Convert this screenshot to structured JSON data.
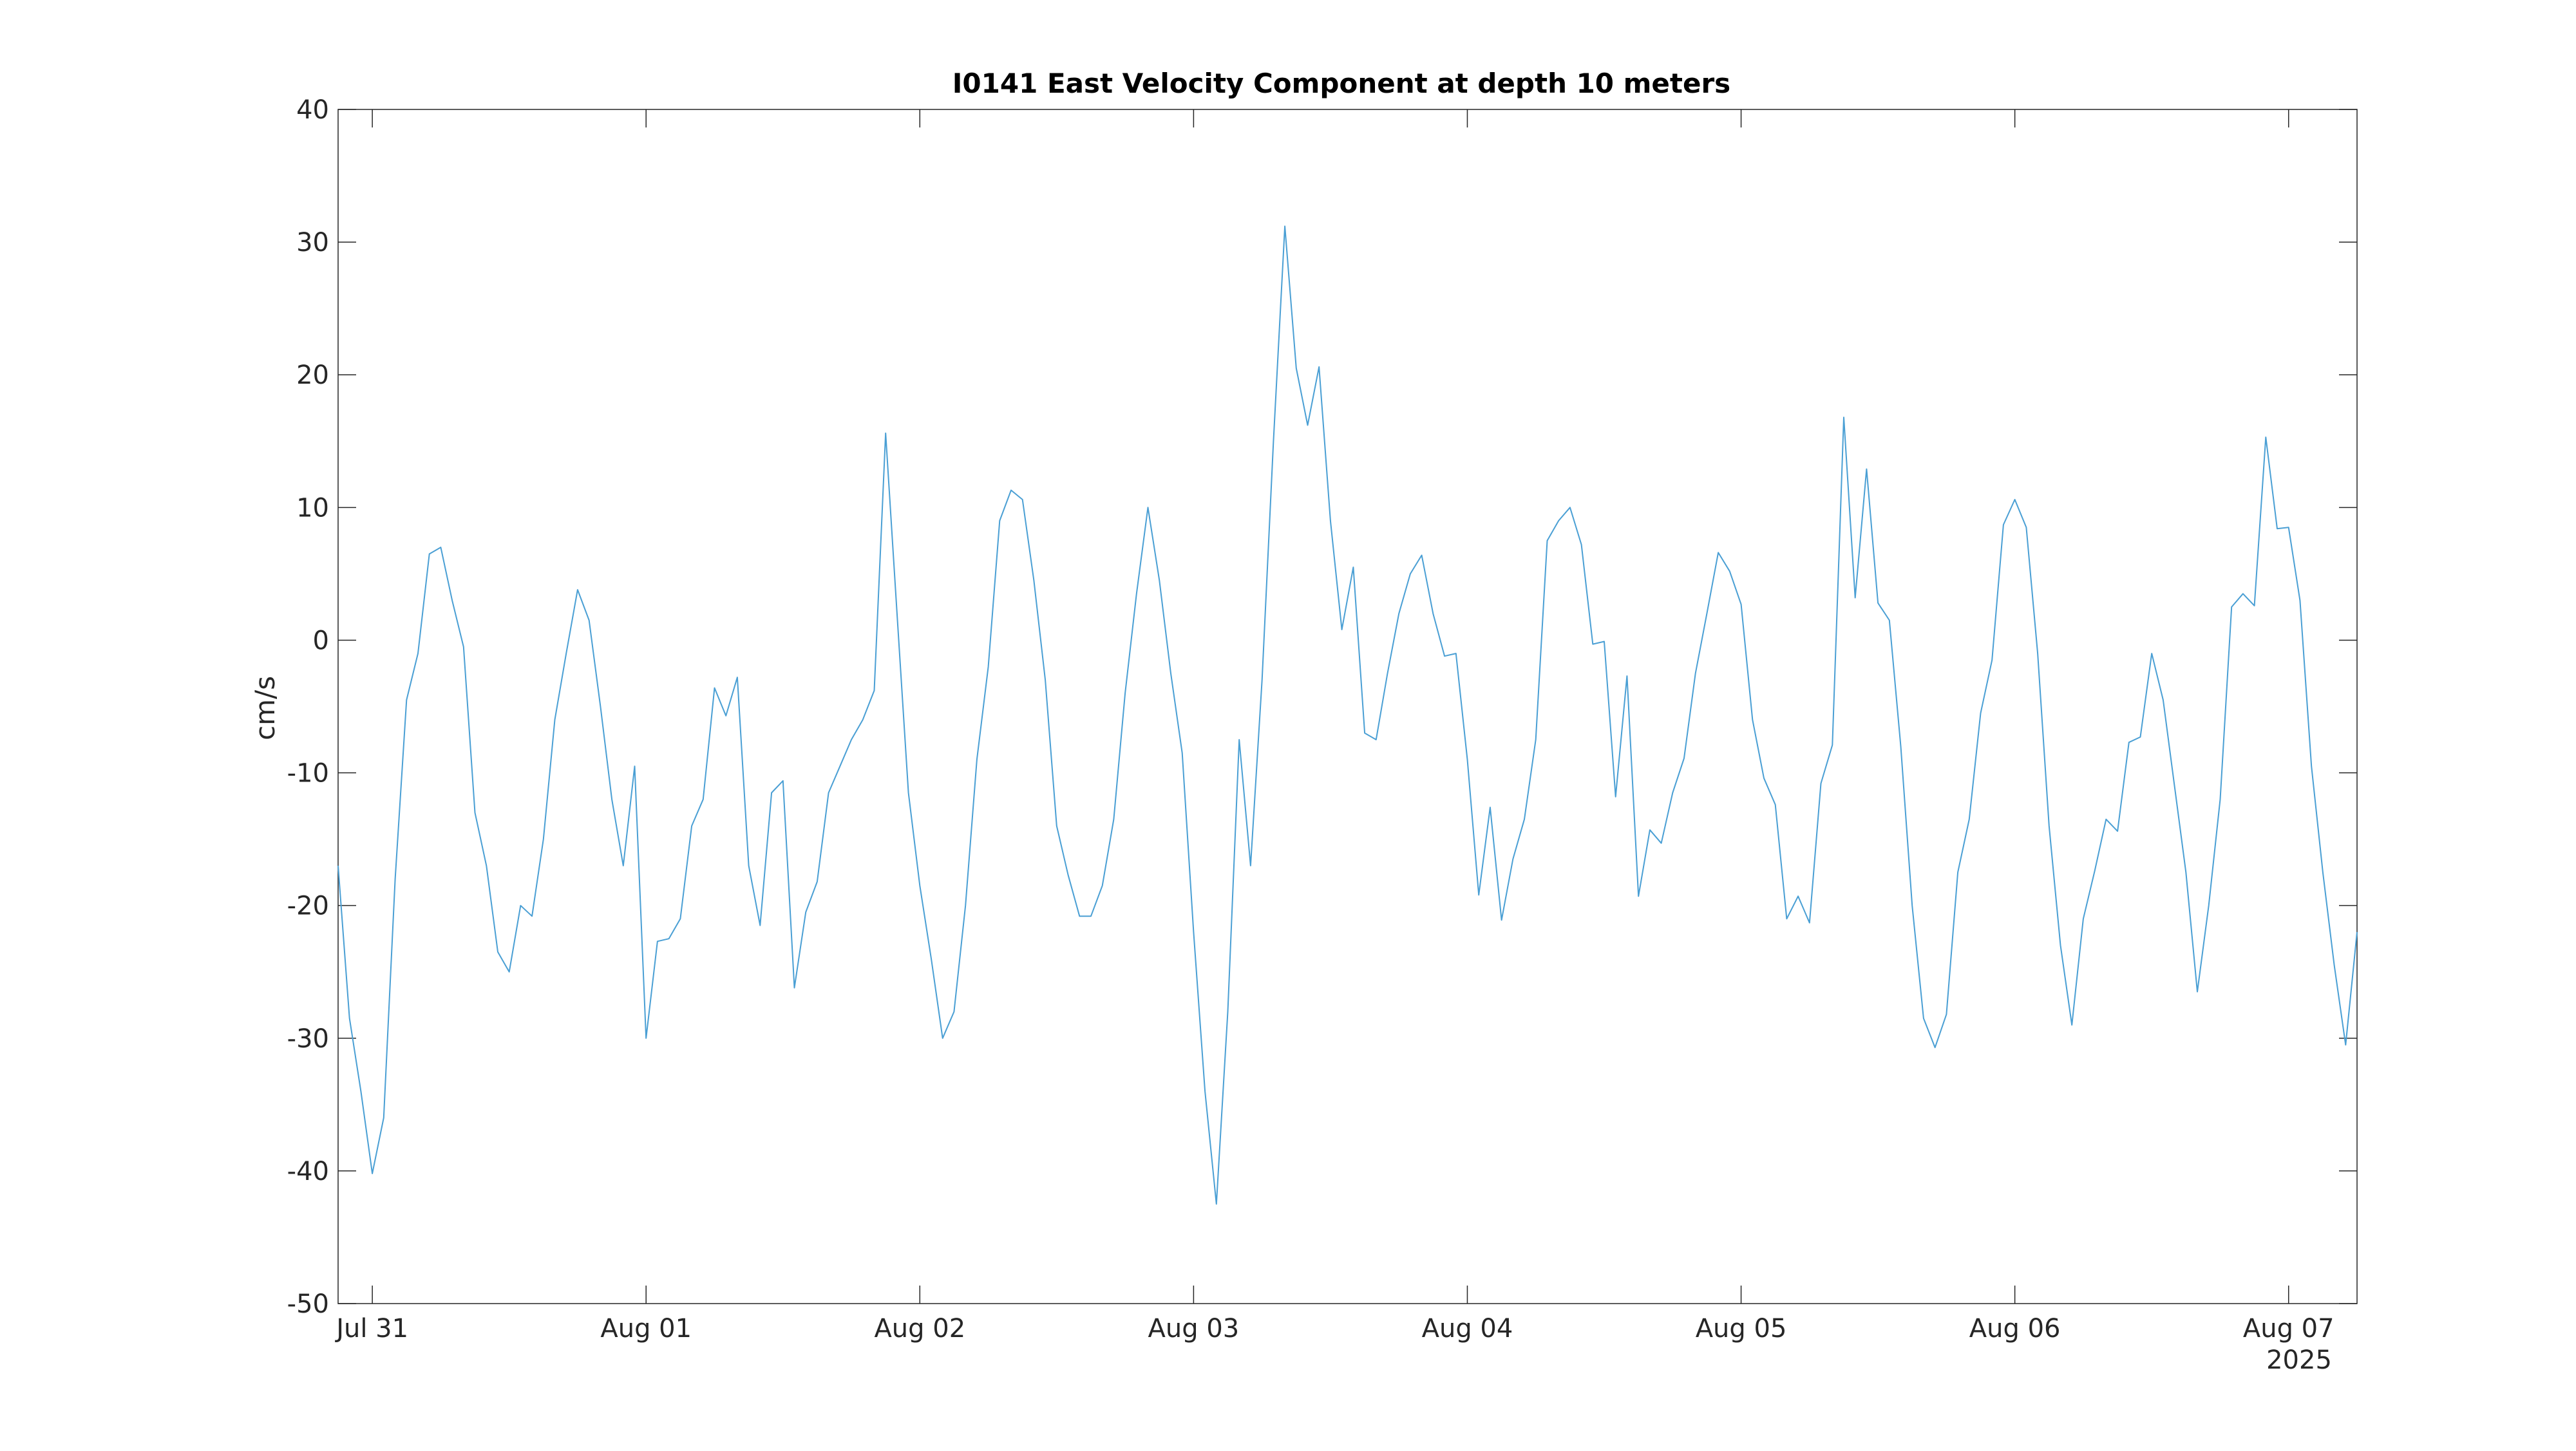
{
  "chart_data": {
    "type": "line",
    "title": "I0141 East Velocity Component at depth 10 meters",
    "xlabel": "",
    "ylabel": "cm/s",
    "ylim": [
      -50,
      40
    ],
    "yticks": [
      -50,
      -40,
      -30,
      -20,
      -10,
      0,
      10,
      20,
      30,
      40
    ],
    "xlim": [
      "2025-07-30 21:00",
      "2025-08-07 06:00"
    ],
    "xticks": [
      {
        "date": "2025-07-31",
        "label": "Jul 31"
      },
      {
        "date": "2025-08-01",
        "label": "Aug 01"
      },
      {
        "date": "2025-08-02",
        "label": "Aug 02"
      },
      {
        "date": "2025-08-03",
        "label": "Aug 03"
      },
      {
        "date": "2025-08-04",
        "label": "Aug 04"
      },
      {
        "date": "2025-08-05",
        "label": "Aug 05"
      },
      {
        "date": "2025-08-06",
        "label": "Aug 06"
      },
      {
        "date": "2025-08-07",
        "label": "Aug 07"
      }
    ],
    "x_secondary_label": "2025",
    "grid": false,
    "line_color": "#4a9fd4",
    "series": [
      {
        "x_start": "2025-07-30 21:00",
        "x_step_hours": 1,
        "values": [
          -17,
          -28.5,
          -34,
          -40.2,
          -36,
          -18,
          -4.5,
          -1,
          6.5,
          7,
          3,
          -0.5,
          -13,
          -17,
          -23.5,
          -25,
          -20,
          -20.8,
          -15,
          -6,
          -1,
          3.8,
          1.5,
          -5,
          -12,
          -17,
          -9.5,
          -30,
          -22.7,
          -22.5,
          -21,
          -14,
          -12,
          -3.6,
          -5.7,
          -2.8,
          -17,
          -21.5,
          -11.5,
          -10.6,
          -26.2,
          -20.5,
          -18.2,
          -11.5,
          -9.5,
          -7.5,
          -6,
          -3.8,
          15.6,
          2,
          -11.5,
          -18.5,
          -24,
          -30,
          -28,
          -20,
          -9,
          -2,
          9,
          11.3,
          10.6,
          4.5,
          -3,
          -14,
          -17.7,
          -20.8,
          -20.8,
          -18.5,
          -13.5,
          -4,
          3.5,
          10,
          4.5,
          -2.5,
          -8.5,
          -22,
          -34,
          -42.5,
          -28,
          -7.5,
          -17,
          -3,
          15,
          31.2,
          20.5,
          16.2,
          20.6,
          9,
          0.8,
          5.5,
          -7,
          -7.5,
          -2.5,
          2,
          5,
          6.4,
          2,
          -1.2,
          -1,
          -9,
          -19.2,
          -12.6,
          -21.1,
          -16.5,
          -13.5,
          -7.5,
          7.5,
          9,
          10,
          7.2,
          -0.3,
          -0.1,
          -11.8,
          -2.7,
          -19.3,
          -14.3,
          -15.3,
          -11.5,
          -8.9,
          -2.5,
          2,
          6.6,
          5.2,
          2.7,
          -6,
          -10.4,
          -12.4,
          -21,
          -19.3,
          -21.3,
          -10.8,
          -7.9,
          16.8,
          3.2,
          12.9,
          2.8,
          1.5,
          -8,
          -20,
          -28.5,
          -30.7,
          -28.2,
          -17.5,
          -13.5,
          -5.5,
          -1.5,
          8.7,
          10.6,
          8.5,
          -1,
          -14,
          -23,
          -29,
          -21,
          -17.4,
          -13.5,
          -14.4,
          -7.7,
          -7.3,
          -1,
          -4.5,
          -11,
          -17.5,
          -26.5,
          -20,
          -12,
          2.5,
          3.5,
          2.6,
          15.3,
          8.4,
          8.5,
          3,
          -9.5,
          -17.5,
          -24.5,
          -30.5,
          -22
        ]
      }
    ]
  }
}
